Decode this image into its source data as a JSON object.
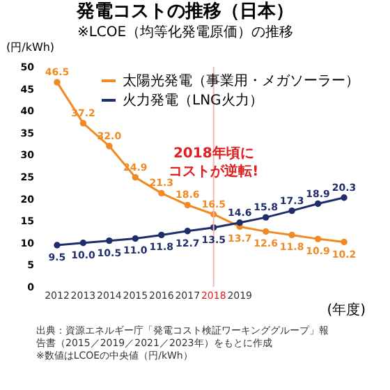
{
  "chart_data": {
    "type": "line",
    "title": "発電コストの推移（日本）",
    "subtitle": "※LCOE（均等化発電原価）の推移",
    "xlabel": "(年度)",
    "ylabel": "(円/kWh)",
    "categories": [
      "2012",
      "2013",
      "2014",
      "2015",
      "2016",
      "2017",
      "2018",
      "2019",
      null,
      null,
      null,
      null
    ],
    "series": [
      {
        "name": "太陽光発電（事業用・メガソーラー）",
        "color": "#f08a24",
        "values": [
          46.5,
          37.2,
          32.0,
          24.9,
          21.3,
          18.6,
          16.5,
          13.7,
          12.6,
          11.8,
          10.9,
          10.2
        ],
        "value_labels": [
          "46.5",
          "37.2",
          "32.0",
          "24.9",
          "21.3",
          "18.6",
          "16.5",
          "13.7",
          "12.6",
          "11.8",
          "10.9",
          "10.2"
        ]
      },
      {
        "name": "火力発電（LNG火力）",
        "color": "#1f2d6b",
        "values": [
          9.5,
          10.0,
          10.5,
          11.0,
          11.8,
          12.7,
          13.5,
          14.6,
          15.8,
          17.3,
          18.9,
          20.3
        ],
        "value_labels": [
          "9.5",
          "10.0",
          "10.5",
          "11.0",
          "11.8",
          "12.7",
          "13.5",
          "14.6",
          "15.8",
          "17.3",
          "18.9",
          "20.3"
        ]
      }
    ],
    "ylim": [
      0,
      50
    ],
    "yticks": [
      0,
      5,
      10,
      15,
      20,
      25,
      30,
      35,
      40,
      45,
      50
    ],
    "ref_lines": [
      {
        "axis": "x",
        "value": "2018",
        "color": "#f2b8b8"
      }
    ],
    "annotations": [
      {
        "text": "2018年頃に",
        "x": "2018"
      },
      {
        "text": "コストが逆転!",
        "x": "2018"
      },
      "出典：資源エネルギー庁「発電コスト検証ワーキンググループ」報告書（2015／2019／2021／2023年）をもとに作成",
      "※数値はLCOEの中央値（円/kWh）"
    ],
    "data_labels": true,
    "marker": "circle",
    "line_style": "solid",
    "legend": "top right",
    "grid": false
  }
}
